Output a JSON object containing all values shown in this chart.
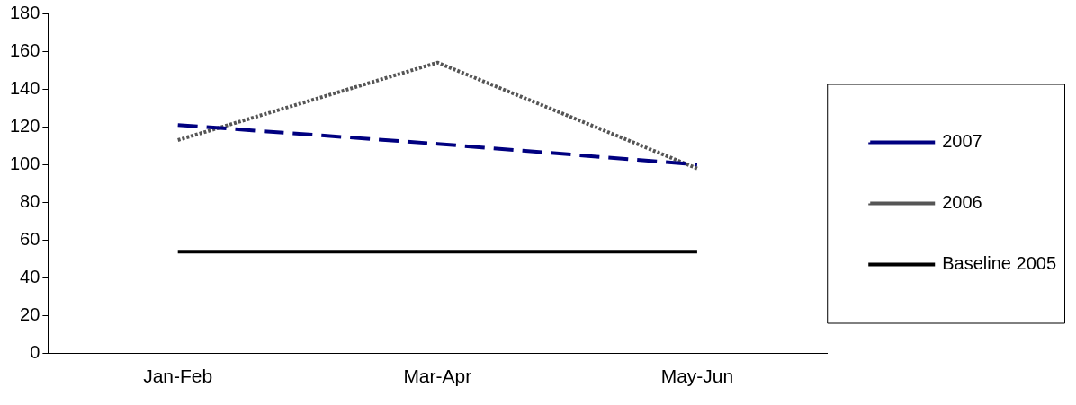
{
  "chart_data": {
    "type": "line",
    "categories": [
      "Jan-Feb",
      "Mar-Apr",
      "May-Jun"
    ],
    "series": [
      {
        "name": "2007",
        "color": "#000080",
        "values": [
          121,
          111,
          100
        ],
        "line_style": "dashed"
      },
      {
        "name": "2006",
        "color": "#555555",
        "values": [
          113,
          154,
          98
        ],
        "line_style": "dotted"
      },
      {
        "name": "Baseline 2005",
        "color": "#000000",
        "values": [
          54,
          54,
          54
        ],
        "line_style": "solid"
      }
    ],
    "ylim": [
      0,
      180
    ],
    "yticks": [
      0,
      20,
      40,
      60,
      80,
      100,
      120,
      140,
      160,
      180
    ],
    "grid": false,
    "legend": "right",
    "marker": "none"
  }
}
